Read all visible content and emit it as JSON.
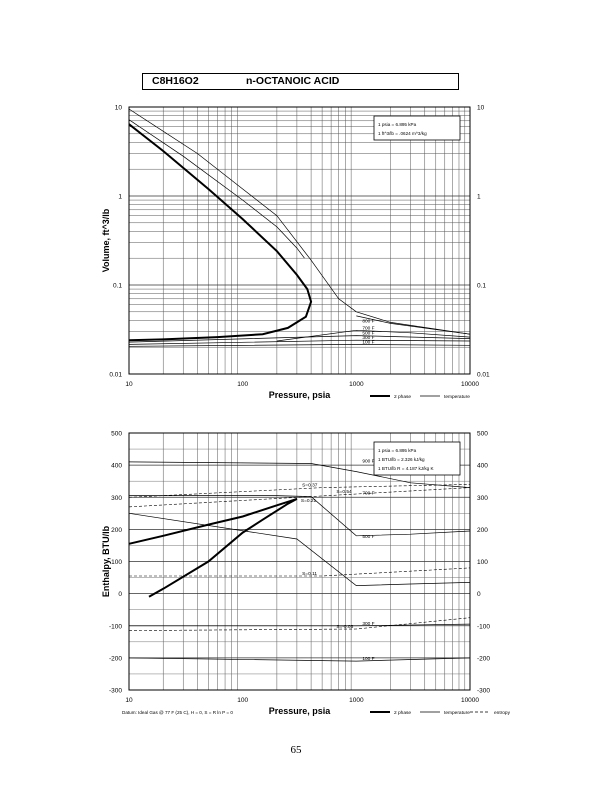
{
  "header": {
    "formula": "C8H16O2",
    "name": "n-OCTANOIC ACID"
  },
  "page_number": "65",
  "chart_data": [
    {
      "type": "line",
      "xscale": "log",
      "yscale": "log",
      "xlim": [
        10,
        10000
      ],
      "ylim": [
        0.01,
        10
      ],
      "xlabel": "Pressure, psia",
      "ylabel": "Volume, ft^3/lb",
      "x_ticks": [
        "10",
        "100",
        "1000",
        "10000"
      ],
      "y_ticks": [
        "0.01",
        "0.1",
        "1",
        "10"
      ],
      "conversions": [
        "1 psia = 6.895 kPa",
        "1 ft^3/lb = .0624 m^3/kg"
      ],
      "legend": [
        "2 phase",
        "temperature"
      ],
      "series": [
        {
          "style": "2 phase",
          "points": [
            [
              10,
              6.4
            ],
            [
              20,
              3.2
            ],
            [
              50,
              1.2
            ],
            [
              100,
              0.55
            ],
            [
              200,
              0.24
            ],
            [
              300,
              0.13
            ],
            [
              370,
              0.09
            ],
            [
              400,
              0.065
            ],
            [
              360,
              0.044
            ],
            [
              250,
              0.033
            ],
            [
              150,
              0.028
            ],
            [
              60,
              0.026
            ],
            [
              20,
              0.0245
            ],
            [
              10,
              0.024
            ]
          ]
        },
        {
          "style": "temperature",
          "label": "",
          "points": [
            [
              10,
              7.2
            ],
            [
              30,
              2.8
            ],
            [
              100,
              0.9
            ],
            [
              200,
              0.45
            ],
            [
              300,
              0.26
            ],
            [
              350,
              0.2
            ]
          ]
        },
        {
          "style": "temperature",
          "label": "",
          "points": [
            [
              10,
              9.5
            ],
            [
              40,
              3
            ],
            [
              100,
              1.2
            ],
            [
              200,
              0.6
            ],
            [
              400,
              0.19
            ],
            [
              700,
              0.07
            ],
            [
              1000,
              0.05
            ],
            [
              2000,
              0.038
            ],
            [
              10000,
              0.028
            ]
          ]
        },
        {
          "style": "temperature",
          "label": "800 F",
          "points": [
            [
              1000,
              0.045
            ],
            [
              2000,
              0.037
            ],
            [
              10000,
              0.028
            ]
          ]
        },
        {
          "style": "temperature",
          "label": "700 F",
          "points": [
            [
              200,
              0.0235
            ],
            [
              1000,
              0.031
            ],
            [
              3000,
              0.029
            ],
            [
              10000,
              0.026
            ]
          ]
        },
        {
          "style": "temperature",
          "label": "500 F",
          "points": [
            [
              10,
              0.0228
            ],
            [
              1000,
              0.027
            ],
            [
              10000,
              0.025
            ]
          ]
        },
        {
          "style": "temperature",
          "label": "300 F",
          "points": [
            [
              10,
              0.0215
            ],
            [
              1000,
              0.024
            ],
            [
              10000,
              0.0235
            ]
          ]
        },
        {
          "style": "temperature",
          "label": "100 F",
          "points": [
            [
              10,
              0.0205
            ],
            [
              1000,
              0.0215
            ],
            [
              10000,
              0.021
            ]
          ]
        }
      ]
    },
    {
      "type": "line",
      "xscale": "log",
      "yscale": "linear",
      "xlim": [
        10,
        10000
      ],
      "ylim": [
        -300,
        500
      ],
      "xlabel": "Pressure,  psia",
      "ylabel": "Enthalpy, BTU/lb",
      "x_ticks": [
        "10",
        "100",
        "1000",
        "10000"
      ],
      "y_ticks": [
        "500",
        "400",
        "300",
        "200",
        "100",
        "0",
        "-100",
        "-200",
        "-300"
      ],
      "conversions": [
        "1 psia = 6.895 kPa",
        "1 BTU/lb = 2.326 kJ/kg",
        "1 BTU/lb R = 4.187 kJ/kg K"
      ],
      "datum_note": "Datum: Ideal Gas @ 77 F (25 C),  H = 0,  S = R ln P = 0",
      "legend": [
        "2 phase",
        "temperature",
        "entropy"
      ],
      "annotations": [
        "S=0.21",
        "S=0.37",
        "S=0.54",
        "S=0.11",
        "S=-0.05"
      ],
      "series": [
        {
          "style": "2 phase",
          "points": [
            [
              10,
              155
            ],
            [
              20,
              180
            ],
            [
              50,
              215
            ],
            [
              100,
              240
            ],
            [
              200,
              275
            ],
            [
              300,
              295
            ],
            [
              250,
              280
            ],
            [
              150,
              230
            ],
            [
              100,
              190
            ],
            [
              50,
              100
            ],
            [
              20,
              15
            ],
            [
              15,
              -10
            ]
          ]
        },
        {
          "style": "temperature",
          "label": "900 F",
          "points": [
            [
              10,
              410
            ],
            [
              400,
              405
            ],
            [
              1000,
              380
            ],
            [
              3000,
              345
            ],
            [
              10000,
              330
            ]
          ]
        },
        {
          "style": "temperature",
          "label": "700 F",
          "points": [
            [
              10,
              305
            ],
            [
              200,
              305
            ],
            [
              400,
              302
            ],
            [
              1000,
              180
            ],
            [
              3000,
              185
            ],
            [
              10000,
              195
            ]
          ]
        },
        {
          "style": "temperature",
          "label": "500 F",
          "points": [
            [
              10,
              250
            ],
            [
              300,
              170
            ],
            [
              1000,
              25
            ],
            [
              3000,
              30
            ],
            [
              10000,
              35
            ]
          ]
        },
        {
          "style": "temperature",
          "label": "300 F",
          "points": [
            [
              10,
              -100
            ],
            [
              1000,
              -100
            ],
            [
              10000,
              -95
            ]
          ]
        },
        {
          "style": "temperature",
          "label": "100 F",
          "points": [
            [
              10,
              -200
            ],
            [
              1000,
              -210
            ],
            [
              10000,
              -200
            ]
          ]
        },
        {
          "style": "entropy",
          "label": "S=0.54",
          "points": [
            [
              10,
              270
            ],
            [
              1000,
              310
            ],
            [
              10000,
              330
            ]
          ]
        },
        {
          "style": "entropy",
          "label": "S=0.37",
          "points": [
            [
              10,
              300
            ],
            [
              500,
              330
            ],
            [
              10000,
              340
            ]
          ]
        },
        {
          "style": "entropy",
          "label": "S=0.11",
          "points": [
            [
              10,
              55
            ],
            [
              500,
              55
            ],
            [
              10000,
              80
            ]
          ]
        },
        {
          "style": "entropy",
          "label": "S=-0.05",
          "points": [
            [
              10,
              -115
            ],
            [
              1000,
              -110
            ],
            [
              10000,
              -75
            ]
          ]
        }
      ]
    }
  ]
}
